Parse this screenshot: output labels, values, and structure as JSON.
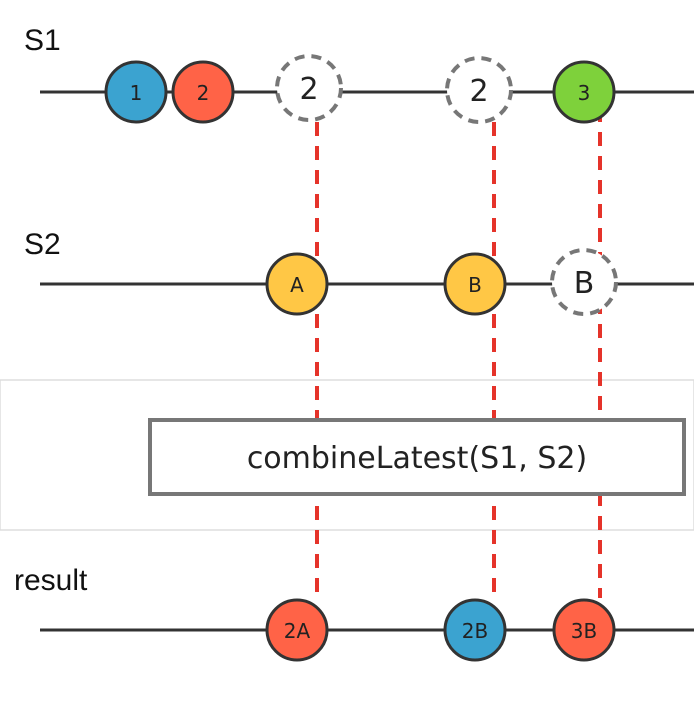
{
  "streams": {
    "s1": {
      "label": "S1",
      "marbles": [
        {
          "text": "1",
          "color": "#3ba3d0",
          "style": "solid"
        },
        {
          "text": "2",
          "color": "#ff6347",
          "style": "solid"
        },
        {
          "text": "2",
          "color": "#ffffff",
          "style": "dashed"
        },
        {
          "text": "2",
          "color": "#ffffff",
          "style": "dashed"
        },
        {
          "text": "3",
          "color": "#7ed13b",
          "style": "solid"
        }
      ]
    },
    "s2": {
      "label": "S2",
      "marbles": [
        {
          "text": "A",
          "color": "#ffc745",
          "style": "solid"
        },
        {
          "text": "B",
          "color": "#ffc745",
          "style": "solid"
        },
        {
          "text": "B",
          "color": "#ffffff",
          "style": "dashed"
        }
      ]
    },
    "result": {
      "label": "result",
      "marbles": [
        {
          "text": "2A",
          "color": "#ff6347",
          "style": "solid"
        },
        {
          "text": "2B",
          "color": "#3ba3d0",
          "style": "solid"
        },
        {
          "text": "3B",
          "color": "#ff6347",
          "style": "solid"
        }
      ]
    }
  },
  "operator": {
    "label": "combineLatest(S1, S2)"
  },
  "colors": {
    "line": "#333333",
    "connector": "#e5332a",
    "dashed_ring": "#777777",
    "operator_border": "#777777",
    "band_border": "#dddddd"
  }
}
